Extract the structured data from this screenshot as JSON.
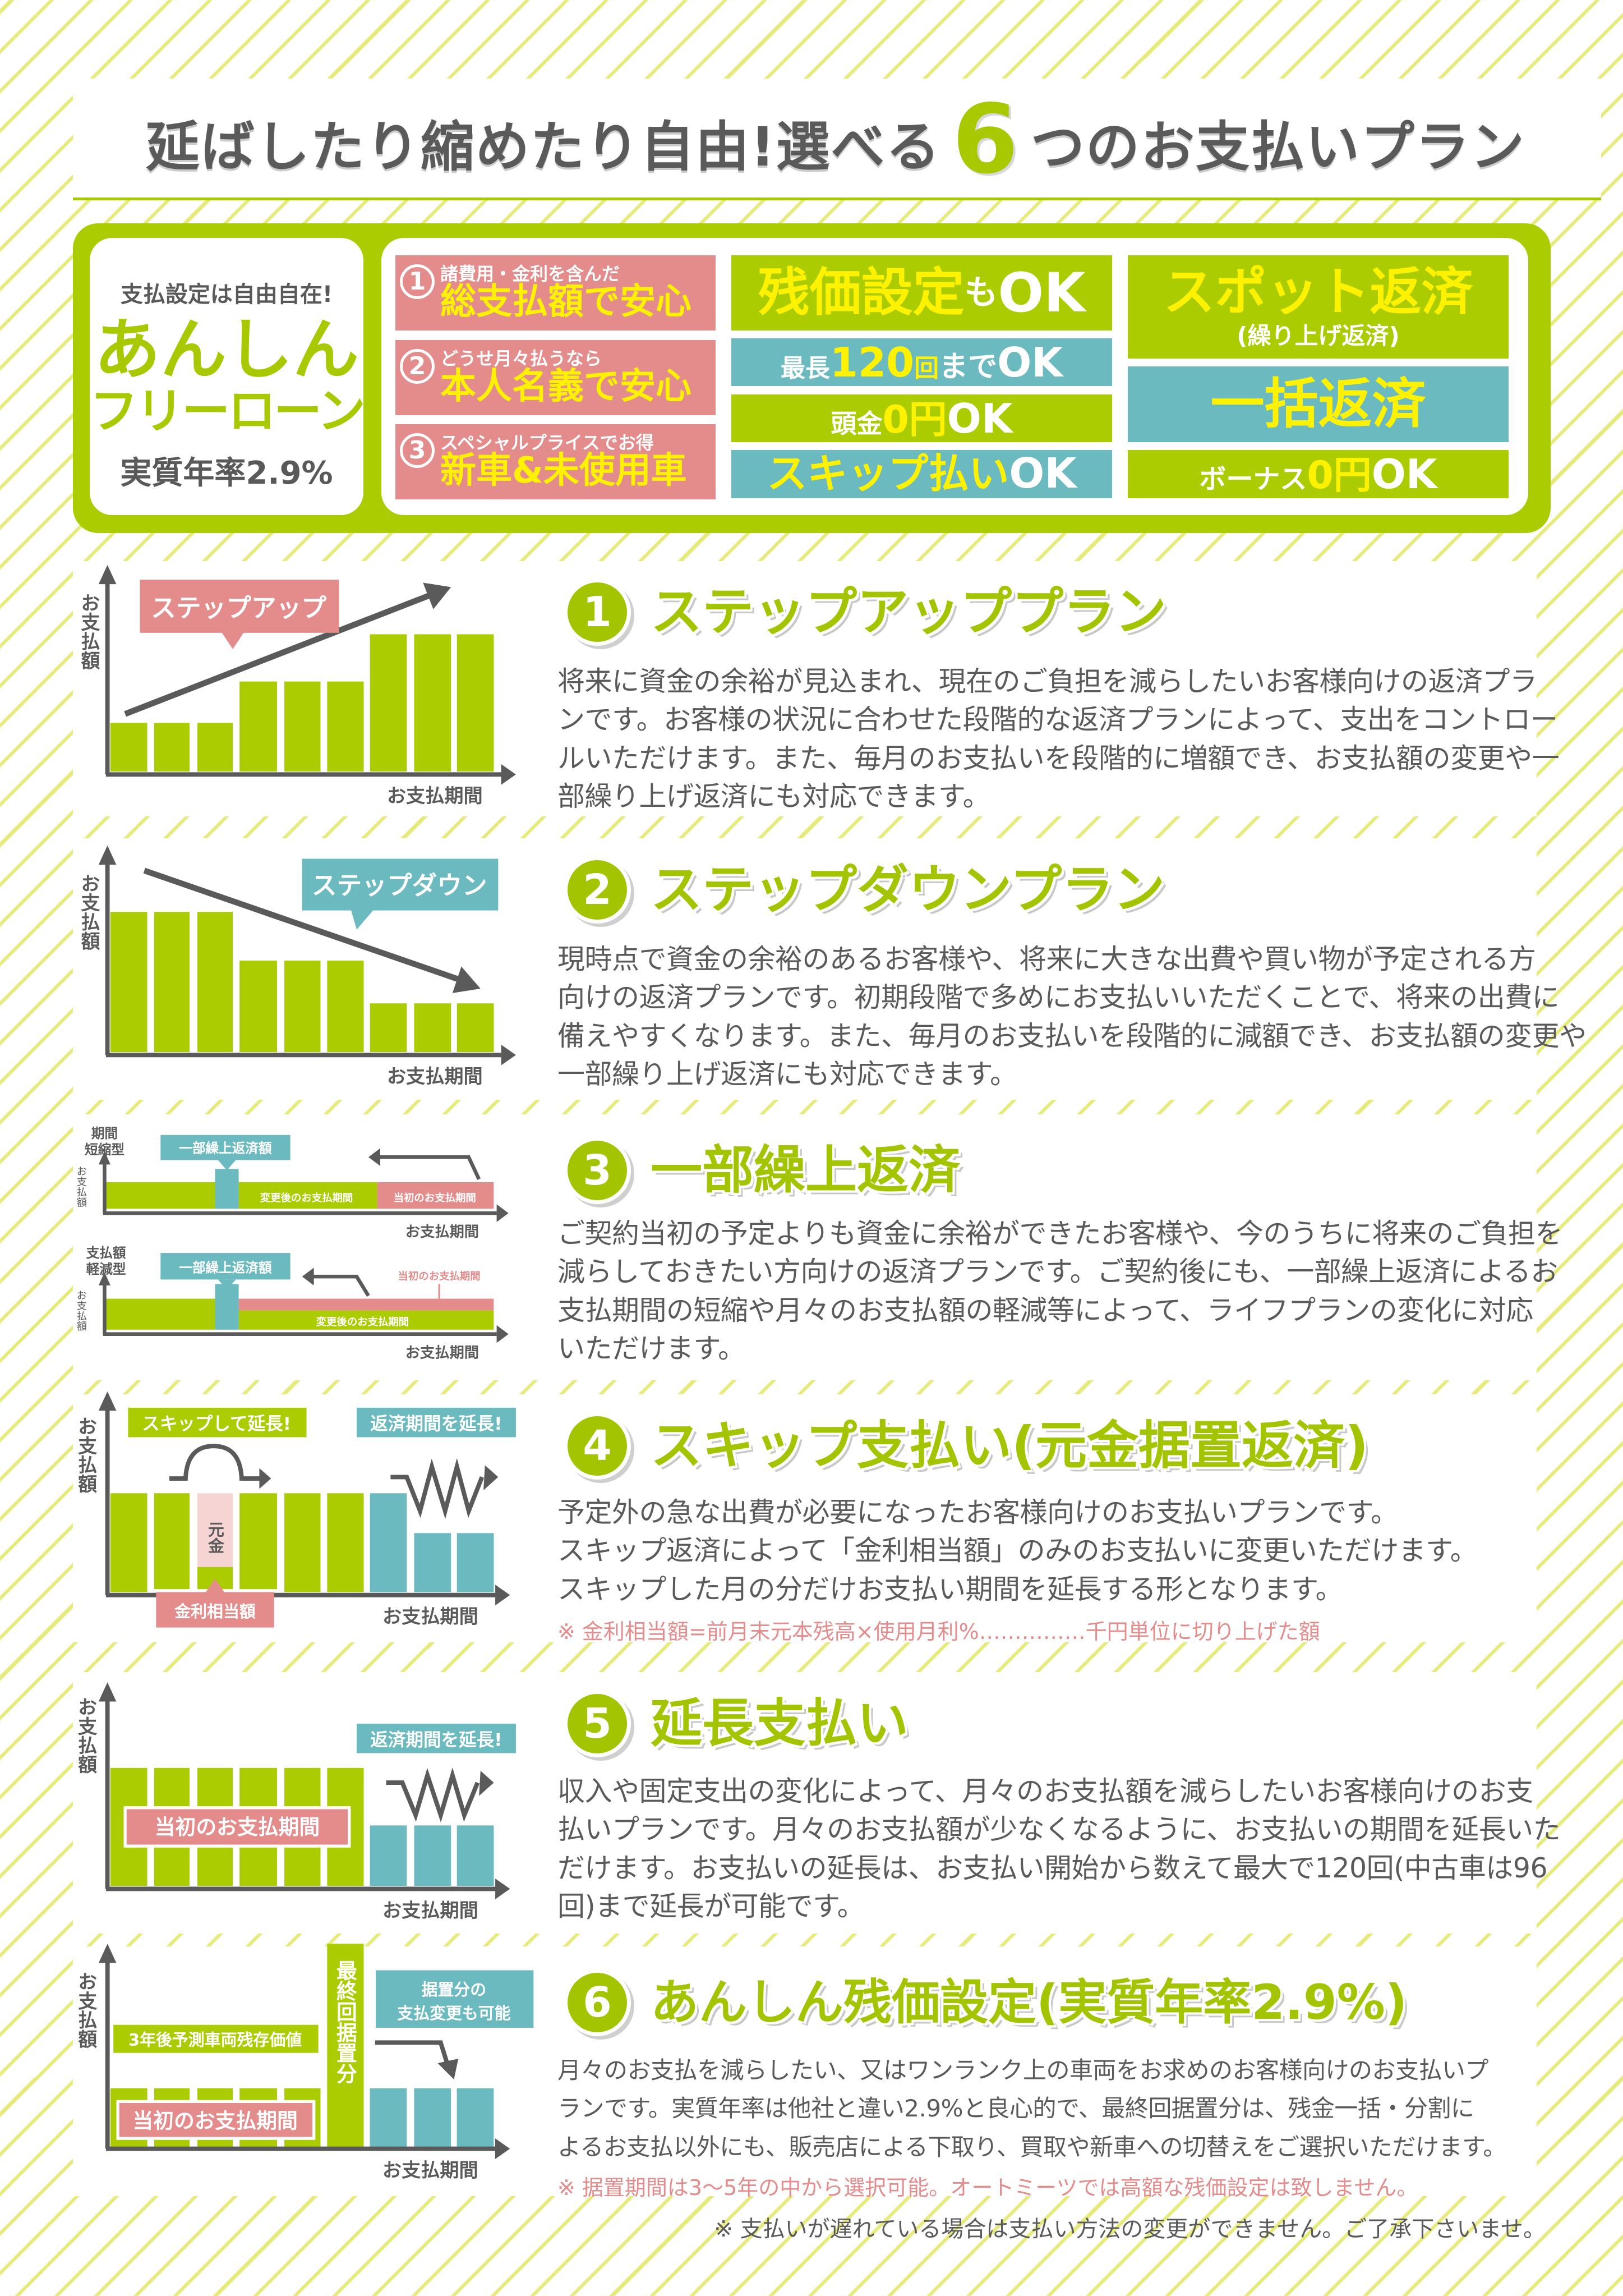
{
  "title": {
    "before": "延ばしたり縮めたり自由!選べる",
    "number": "6",
    "after": "つのお支払いプラン"
  },
  "summary": {
    "left": {
      "tagline": "支払設定は自由自在!",
      "brand_line1": "あんしん",
      "brand_line2": "フリーローン",
      "rate": "実質年率2.9%"
    },
    "points": [
      {
        "number": "1",
        "small": "諸費用・金利を含んだ",
        "big": "総支払額で安心"
      },
      {
        "number": "2",
        "small": "どうせ月々払うなら",
        "big": "本人名義で安心"
      },
      {
        "number": "3",
        "small": "スペシャルプライスでお得",
        "big": "新車&未使用車"
      }
    ],
    "zanka": {
      "a": "残価設定",
      "b": "も",
      "c": "OK"
    },
    "max120": {
      "a": "最長",
      "b": "120",
      "c": "回",
      "d": "まで",
      "e": "OK"
    },
    "atamakin": {
      "a": "頭金",
      "b": "0円",
      "c": "OK"
    },
    "skip": {
      "a": "スキップ払い",
      "b": "OK"
    },
    "spot": {
      "a": "スポット返済",
      "b": "(繰り上げ返済)"
    },
    "ikkatsu": "一括返済",
    "bonus": {
      "a": "ボーナス",
      "b": "0円",
      "c": "OK"
    }
  },
  "colors": {
    "green": "#aacc00",
    "teal": "#6bbac0",
    "pink": "#e48c8c",
    "yellow": "#fff200",
    "gray": "#5a5a5a"
  },
  "axis": {
    "y": "お支払額",
    "x": "お支払期間"
  },
  "plans": [
    {
      "number": "1",
      "title": "ステップアッププラン",
      "lines": [
        "将来に資金の余裕が見込まれ、現在のご負担を減らしたいお客様向けの返済プラ",
        "ンです。お客様の状況に合わせた段階的な返済プランによって、支出をコントロー",
        "ルいただけます。また、毎月のお支払いを段階的に増額でき、お支払額の変更や一",
        "部繰り上げ返済にも対応できます。"
      ],
      "chart_label": "ステップアップ"
    },
    {
      "number": "2",
      "title": "ステップダウンプラン",
      "lines": [
        "現時点で資金の余裕のあるお客様や、将来に大きな出費や買い物が予定される方",
        "向けの返済プランです。初期段階で多めにお支払いいただくことで、将来の出費に",
        "備えやすくなります。また、毎月のお支払いを段階的に減額でき、お支払額の変更や",
        "一部繰り上げ返済にも対応できます。"
      ],
      "chart_label": "ステップダウン"
    },
    {
      "number": "3",
      "title": "一部繰上返済",
      "lines": [
        "ご契約当初の予定よりも資金に余裕ができたお客様や、今のうちに将来のご負担を",
        "減らしておきたい方向けの返済プランです。ご契約後にも、一部繰上返済によるお",
        "支払期間の短縮や月々のお支払額の軽減等によって、ライフプランの変化に対応",
        "いただけます。"
      ],
      "chart": {
        "type_a_1": "期間",
        "type_a_2": "短縮型",
        "type_b_1": "支払額",
        "type_b_2": "軽減型",
        "prepay": "一部繰上返済額",
        "after": "変更後のお支払期間",
        "original": "当初のお支払期間"
      }
    },
    {
      "number": "4",
      "title": "スキップ支払い(元金据置返済)",
      "lines": [
        "予定外の急な出費が必要になったお客様向けのお支払いプランです。",
        "スキップ返済によって「金利相当額」のみのお支払いに変更いただけます。",
        "スキップした月の分だけお支払い期間を延長する形となります。"
      ],
      "note": "※ 金利相当額=前月末元本残高×使用月利%……………千円単位に切り上げた額",
      "chart": {
        "skip": "スキップして延長!",
        "extend": "返済期間を延長!",
        "principal": "元金",
        "interest": "金利相当額"
      }
    },
    {
      "number": "5",
      "title": "延長支払い",
      "lines": [
        "収入や固定支出の変化によって、月々のお支払額を減らしたいお客様向けのお支",
        "払いプランです。月々のお支払額が少なくなるように、お支払いの期間を延長いた",
        "だけます。お支払いの延長は、お支払い開始から数えて最大で120回(中古車は96",
        "回)まで延長が可能です。"
      ],
      "chart": {
        "extend": "返済期間を延長!",
        "original": "当初のお支払期間"
      }
    },
    {
      "number": "6",
      "title": "あんしん残価設定(実質年率2.9%)",
      "lines": [
        "月々のお支払を減らしたい、又はワンランク上の車両をお求めのお客様向けのお支払いプ",
        "ランです。実質年率は他社と違い2.9%と良心的で、最終回据置分は、残金一括・分割に",
        "よるお支払以外にも、販売店による下取り、買取や新車への切替えをご選択いただけます。"
      ],
      "note": "※ 据置期間は3〜5年の中から選択可能。オートミーツでは高額な残価設定は致しません。",
      "chart": {
        "residual": "3年後予測車両残存価値",
        "final": "最終回据置分",
        "change_1": "据置分の",
        "change_2": "支払変更も可能",
        "original": "当初のお支払期間"
      }
    }
  ],
  "footer_note": "※ 支払いが遅れている場合は支払い方法の変更ができません。ご了承下さいませ。"
}
